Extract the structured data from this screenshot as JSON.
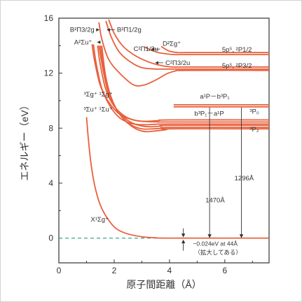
{
  "chart_data": {
    "type": "line",
    "xlabel": "原子間距離（Å）",
    "ylabel": "エネルギー（eV）",
    "xlim": [
      0,
      7.6
    ],
    "ylim": [
      -1.8,
      16
    ],
    "xticks": [
      "0",
      "2",
      "4",
      "6"
    ],
    "yticks": [
      "0",
      "4",
      "8",
      "12",
      "16"
    ],
    "colors": {
      "curve": "#e8603c",
      "dashed": "#3aa78f",
      "axis": "#333333",
      "marker": "#333333"
    },
    "series": [
      {
        "name": "X¹Σg⁺",
        "points": [
          [
            1.0,
            8.8
          ],
          [
            1.05,
            7.6
          ],
          [
            1.15,
            5.6
          ],
          [
            1.3,
            3.8
          ],
          [
            1.5,
            2.4
          ],
          [
            1.8,
            1.3
          ],
          [
            2.1,
            0.65
          ],
          [
            2.5,
            0.3
          ],
          [
            3.0,
            0.1
          ],
          [
            3.5,
            0.02
          ],
          [
            4.0,
            0.0
          ],
          [
            7.6,
            0.0
          ]
        ]
      },
      {
        "name": "A²Σu⁺ (upper)",
        "points": [
          [
            1.2,
            14.1
          ],
          [
            1.3,
            12.8
          ],
          [
            1.5,
            11.1
          ],
          [
            1.8,
            9.9
          ],
          [
            2.2,
            9.0
          ],
          [
            2.6,
            8.65
          ],
          [
            3.0,
            8.5
          ],
          [
            3.6,
            8.45
          ],
          [
            4.0,
            8.45
          ],
          [
            7.6,
            8.45
          ]
        ]
      },
      {
        "name": "A²Σu⁺ (lower)",
        "points": [
          [
            1.25,
            14.1
          ],
          [
            1.35,
            12.7
          ],
          [
            1.55,
            10.9
          ],
          [
            1.85,
            9.6
          ],
          [
            2.2,
            8.75
          ],
          [
            2.6,
            8.35
          ],
          [
            3.0,
            8.25
          ],
          [
            3.5,
            8.28
          ],
          [
            4.0,
            8.3
          ],
          [
            7.6,
            8.3
          ]
        ]
      },
      {
        "name": "³Σu⁺",
        "points": [
          [
            1.4,
            14.0
          ],
          [
            1.5,
            12.6
          ],
          [
            1.7,
            10.8
          ],
          [
            2.0,
            9.6
          ],
          [
            2.4,
            8.85
          ],
          [
            2.8,
            8.55
          ],
          [
            3.2,
            8.5
          ],
          [
            3.6,
            8.55
          ],
          [
            4.0,
            8.6
          ],
          [
            7.6,
            8.6
          ]
        ]
      },
      {
        "name": "¹Σg⁺",
        "points": [
          [
            1.45,
            14.0
          ],
          [
            1.6,
            12.2
          ],
          [
            1.8,
            10.5
          ],
          [
            2.1,
            9.3
          ],
          [
            2.5,
            8.55
          ],
          [
            2.9,
            8.2
          ],
          [
            3.3,
            8.1
          ],
          [
            3.7,
            8.15
          ],
          [
            4.0,
            8.2
          ],
          [
            7.6,
            8.2
          ]
        ]
      },
      {
        "name": "³Σg⁺",
        "points": [
          [
            1.5,
            14.0
          ],
          [
            1.65,
            12.0
          ],
          [
            1.9,
            10.2
          ],
          [
            2.2,
            9.0
          ],
          [
            2.6,
            8.25
          ],
          [
            3.0,
            7.95
          ],
          [
            3.4,
            7.95
          ],
          [
            3.8,
            8.0
          ],
          [
            4.0,
            8.05
          ],
          [
            7.6,
            8.05
          ]
        ]
      },
      {
        "name": "¹Σu⁺",
        "points": [
          [
            1.55,
            14.0
          ],
          [
            1.7,
            11.7
          ],
          [
            1.95,
            9.9
          ],
          [
            2.3,
            8.75
          ],
          [
            2.7,
            8.05
          ],
          [
            3.1,
            7.75
          ],
          [
            3.5,
            7.8
          ],
          [
            3.9,
            7.9
          ],
          [
            4.0,
            7.95
          ],
          [
            7.6,
            7.95
          ]
        ]
      },
      {
        "name": "B²Π3/2g",
        "points": [
          [
            1.45,
            15.7
          ],
          [
            1.55,
            14.5
          ],
          [
            1.8,
            13.0
          ],
          [
            2.2,
            12.0
          ],
          [
            2.7,
            11.15
          ],
          [
            3.1,
            11.15
          ],
          [
            3.5,
            11.5
          ],
          [
            3.9,
            11.95
          ],
          [
            4.2,
            12.15
          ],
          [
            4.6,
            12.2
          ],
          [
            7.6,
            12.2
          ]
        ]
      },
      {
        "name": "B²Π1/2g",
        "points": [
          [
            1.7,
            15.8
          ],
          [
            1.9,
            14.6
          ],
          [
            2.2,
            13.5
          ],
          [
            2.6,
            12.8
          ],
          [
            3.0,
            12.4
          ],
          [
            3.5,
            12.3
          ],
          [
            4.0,
            12.3
          ],
          [
            7.6,
            12.3
          ]
        ]
      },
      {
        "name": "C²Π3/2u",
        "points": [
          [
            1.8,
            15.9
          ],
          [
            2.0,
            14.9
          ],
          [
            2.3,
            14.0
          ],
          [
            2.7,
            13.35
          ],
          [
            3.2,
            12.85
          ],
          [
            3.7,
            12.55
          ],
          [
            4.1,
            12.45
          ],
          [
            4.6,
            12.45
          ],
          [
            7.6,
            12.45
          ]
        ]
      },
      {
        "name": "C²Π1/2u",
        "points": [
          [
            3.1,
            13.9
          ],
          [
            3.3,
            13.7
          ],
          [
            3.6,
            13.5
          ],
          [
            3.9,
            13.4
          ],
          [
            4.2,
            13.35
          ],
          [
            4.6,
            13.35
          ],
          [
            7.6,
            13.35
          ]
        ]
      },
      {
        "name": "D²Σg⁺",
        "points": [
          [
            3.7,
            13.95
          ],
          [
            3.85,
            13.75
          ],
          [
            4.0,
            13.6
          ],
          [
            4.3,
            13.5
          ],
          [
            4.7,
            13.5
          ],
          [
            7.6,
            13.5
          ]
        ]
      },
      {
        "name": "a¹P (upper)",
        "points": [
          [
            4.15,
            9.7
          ],
          [
            7.6,
            9.7
          ]
        ]
      },
      {
        "name": "a¹P (lower)",
        "points": [
          [
            4.15,
            9.55
          ],
          [
            7.6,
            9.55
          ]
        ]
      }
    ],
    "dashed_lines": [
      {
        "name": "ground-dissociation",
        "points": [
          [
            0,
            0.0
          ],
          [
            4.4,
            0.0
          ]
        ]
      },
      {
        "name": "upper-dissociation",
        "points": [
          [
            4.8,
            13.5
          ],
          [
            6.8,
            13.5
          ]
        ]
      }
    ],
    "arrows": [
      {
        "from": [
          5.45,
          9.5
        ],
        "to": [
          5.45,
          0.05
        ]
      },
      {
        "from": [
          6.6,
          9.5
        ],
        "to": [
          6.6,
          0.05
        ]
      }
    ],
    "labels": [
      {
        "name": "B²Π3/2g",
        "text": "B²Π3/2g",
        "at": [
          0.4,
          15.0
        ],
        "arrow_to": [
          1.45,
          15.0
        ]
      },
      {
        "name": "B²Π1/2g",
        "text": "B²Π1/2g",
        "at": [
          2.1,
          15.0
        ],
        "arrow_to": [
          1.75,
          15.0
        ]
      },
      {
        "name": "A²Σu⁺",
        "text": "A²Σu⁺",
        "at": [
          0.55,
          14.1
        ],
        "arrow_to": [
          1.4,
          14.1
        ]
      },
      {
        "name": "C²Π1/2u",
        "text": "C²Π1/2u",
        "at": [
          2.7,
          13.6
        ],
        "arrow_to": [
          3.35,
          13.6
        ]
      },
      {
        "name": "D²Σg⁺",
        "text": "D²Σg⁺",
        "at": [
          3.75,
          14.0
        ]
      },
      {
        "name": "C²Π3/2u",
        "text": "C²Π3/2u",
        "at": [
          3.85,
          12.6
        ],
        "arrow_to": [
          3.5,
          12.6
        ]
      },
      {
        "name": "5p5-2P1/2",
        "text": "5p⁵, ²P1/2",
        "at": [
          5.9,
          13.55
        ]
      },
      {
        "name": "5p5-2P3/2",
        "text": "5p⁵, ²P3/2",
        "at": [
          5.9,
          12.4
        ]
      },
      {
        "name": "3Sg-1Sg",
        "text": "³Σg⁺ ¹Σg⁺",
        "at": [
          0.9,
          10.3
        ]
      },
      {
        "name": "3Su-1Su",
        "text": "³Σu⁺ ¹Σu⁺",
        "at": [
          0.9,
          9.2
        ]
      },
      {
        "name": "a1P-b3P1",
        "text": "a¹P－b³P₁",
        "at": [
          5.1,
          10.15
        ]
      },
      {
        "name": "b3P1-a1P",
        "text": "b³P₁－a¹P",
        "at": [
          4.9,
          8.9
        ]
      },
      {
        "name": "3P0",
        "text": "³P₀",
        "at": [
          6.9,
          9.05
        ]
      },
      {
        "name": "3P2",
        "text": "³P₂",
        "at": [
          6.9,
          7.75
        ]
      },
      {
        "name": "1470A",
        "text": "1470Å",
        "at": [
          5.3,
          2.6
        ]
      },
      {
        "name": "1296A",
        "text": "1296Å",
        "at": [
          6.35,
          4.2
        ]
      },
      {
        "name": "X1Sg",
        "text": "X¹Σg⁺",
        "at": [
          1.15,
          1.2
        ]
      },
      {
        "name": "ground-note",
        "text": "−0.024eV at 44Å",
        "at": [
          4.85,
          -0.55
        ]
      },
      {
        "name": "ground-note-sub",
        "text": "（拡大してある）",
        "at": [
          4.9,
          -1.2
        ]
      }
    ]
  }
}
